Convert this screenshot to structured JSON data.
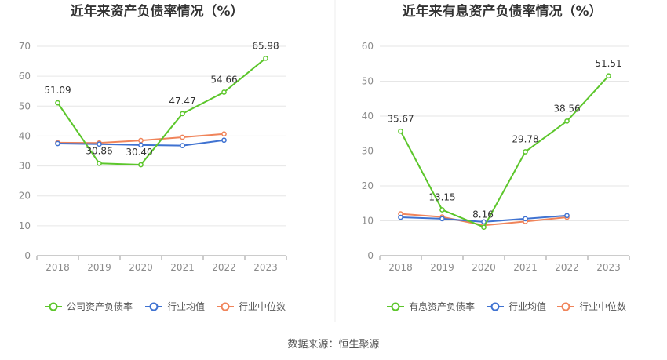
{
  "source": "数据来源：恒生聚源",
  "chart_data": [
    {
      "type": "line",
      "title": "近年来资产负债率情况（%）",
      "categories": [
        "2018",
        "2019",
        "2020",
        "2021",
        "2022",
        "2023"
      ],
      "ylim": [
        0,
        70
      ],
      "yticks": [
        0,
        10,
        20,
        30,
        40,
        50,
        60,
        70
      ],
      "grid": true,
      "legend_position": "bottom",
      "series": [
        {
          "name": "公司资产负债率",
          "color": "#5cc62b",
          "values": [
            51.09,
            30.86,
            30.4,
            47.47,
            54.66,
            65.98
          ],
          "labels": [
            "51.09",
            "30.86",
            "30.40",
            "47.47",
            "54.66",
            "65.98"
          ]
        },
        {
          "name": "行业均值",
          "color": "#3f72d1",
          "values": [
            37.5,
            37.3,
            37.0,
            36.8,
            38.6,
            null
          ]
        },
        {
          "name": "行业中位数",
          "color": "#f0845a",
          "values": [
            37.8,
            37.7,
            38.5,
            39.6,
            40.7,
            null
          ]
        }
      ]
    },
    {
      "type": "line",
      "title": "近年来有息资产负债率情况（%）",
      "categories": [
        "2018",
        "2019",
        "2020",
        "2021",
        "2022",
        "2023"
      ],
      "ylim": [
        0,
        60
      ],
      "yticks": [
        0,
        10,
        20,
        30,
        40,
        50,
        60
      ],
      "grid": true,
      "legend_position": "bottom",
      "series": [
        {
          "name": "有息资产负债率",
          "color": "#5cc62b",
          "values": [
            35.67,
            13.15,
            8.16,
            29.78,
            38.56,
            51.51
          ],
          "labels": [
            "35.67",
            "13.15",
            "8.16",
            "29.78",
            "38.56",
            "51.51"
          ]
        },
        {
          "name": "行业均值",
          "color": "#3f72d1",
          "values": [
            11.0,
            10.6,
            9.7,
            10.6,
            11.5,
            null
          ]
        },
        {
          "name": "行业中位数",
          "color": "#f0845a",
          "values": [
            12.0,
            11.1,
            8.7,
            9.8,
            11.0,
            null
          ]
        }
      ]
    }
  ]
}
